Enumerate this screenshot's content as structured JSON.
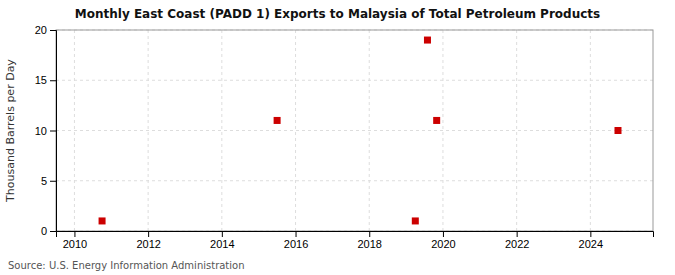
{
  "chart_data": {
    "type": "scatter",
    "title": "Monthly East Coast (PADD 1) Exports to Malaysia of Total Petroleum Products",
    "ylabel": "Thousand Barrels per Day",
    "annotations": [
      "Source: U.S. Energy Information Administration"
    ],
    "x": [
      2010.75,
      2015.5,
      2019.25,
      2019.58,
      2019.83,
      2024.75
    ],
    "values": [
      1.0,
      11.0,
      1.0,
      19.0,
      11.0,
      10.0
    ],
    "color": "#cc0000",
    "marker": "square",
    "xlim": [
      2009.5,
      2025.7
    ],
    "ylim": [
      0,
      20
    ],
    "xticks": [
      2010,
      2012,
      2014,
      2016,
      2018,
      2020,
      2022,
      2024
    ],
    "yticks": [
      0,
      5,
      10,
      15,
      20
    ],
    "grid": true
  }
}
